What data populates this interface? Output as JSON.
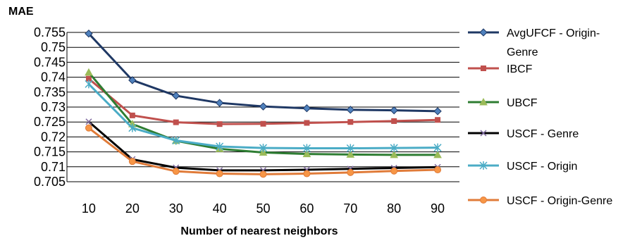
{
  "chart_data": {
    "type": "line",
    "title": "",
    "xlabel": "Number of nearest neighbors",
    "ylabel": "MAE",
    "categories": [
      "10",
      "20",
      "30",
      "40",
      "50",
      "60",
      "70",
      "80",
      "90"
    ],
    "x": [
      10,
      20,
      30,
      40,
      50,
      60,
      70,
      80,
      90
    ],
    "ylim": [
      0.705,
      0.755
    ],
    "yticks": [
      "0.755",
      "0.75",
      "0.745",
      "0.74",
      "0.735",
      "0.73",
      "0.725",
      "0.72",
      "0.715",
      "0.71",
      "0.705"
    ],
    "grid": true,
    "legend_position": "right",
    "series": [
      {
        "name": "AvgUFCF - Origin-Genre",
        "legend_lines": [
          "AvgUFCF - Origin-",
          "Genre"
        ],
        "color": "#1F3864",
        "marker": "diamond",
        "values": [
          0.7546,
          0.739,
          0.7338,
          0.7314,
          0.7302,
          0.7296,
          0.7291,
          0.7289,
          0.7286
        ]
      },
      {
        "name": "IBCF",
        "legend_lines": [
          "IBCF"
        ],
        "color": "#C0504D",
        "marker": "square",
        "values": [
          0.7395,
          0.7272,
          0.7249,
          0.7243,
          0.7244,
          0.7247,
          0.725,
          0.7253,
          0.7257
        ]
      },
      {
        "name": "UBCF",
        "legend_lines": [
          "UBCF"
        ],
        "color": "#2E7D32",
        "marker": "triangle",
        "values": [
          0.7416,
          0.7243,
          0.7187,
          0.716,
          0.7148,
          0.7143,
          0.7141,
          0.714,
          0.714
        ]
      },
      {
        "name": "USCF - Genre",
        "legend_lines": [
          "USCF - Genre"
        ],
        "color": "#000000",
        "marker": "x",
        "values": [
          0.7251,
          0.7125,
          0.7097,
          0.7088,
          0.7088,
          0.709,
          0.7093,
          0.7096,
          0.7099
        ]
      },
      {
        "name": "USCF - Origin",
        "legend_lines": [
          "USCF - Origin"
        ],
        "color": "#4BACC6",
        "marker": "asterisk",
        "values": [
          0.7377,
          0.723,
          0.7188,
          0.7168,
          0.7163,
          0.7162,
          0.7162,
          0.7163,
          0.7164
        ]
      },
      {
        "name": "USCF - Origin-Genre",
        "legend_lines": [
          "USCF - Origin-Genre"
        ],
        "color": "#E07B39",
        "marker": "circle",
        "values": [
          0.723,
          0.7118,
          0.7085,
          0.7077,
          0.7075,
          0.7077,
          0.7081,
          0.7086,
          0.709
        ]
      }
    ]
  }
}
